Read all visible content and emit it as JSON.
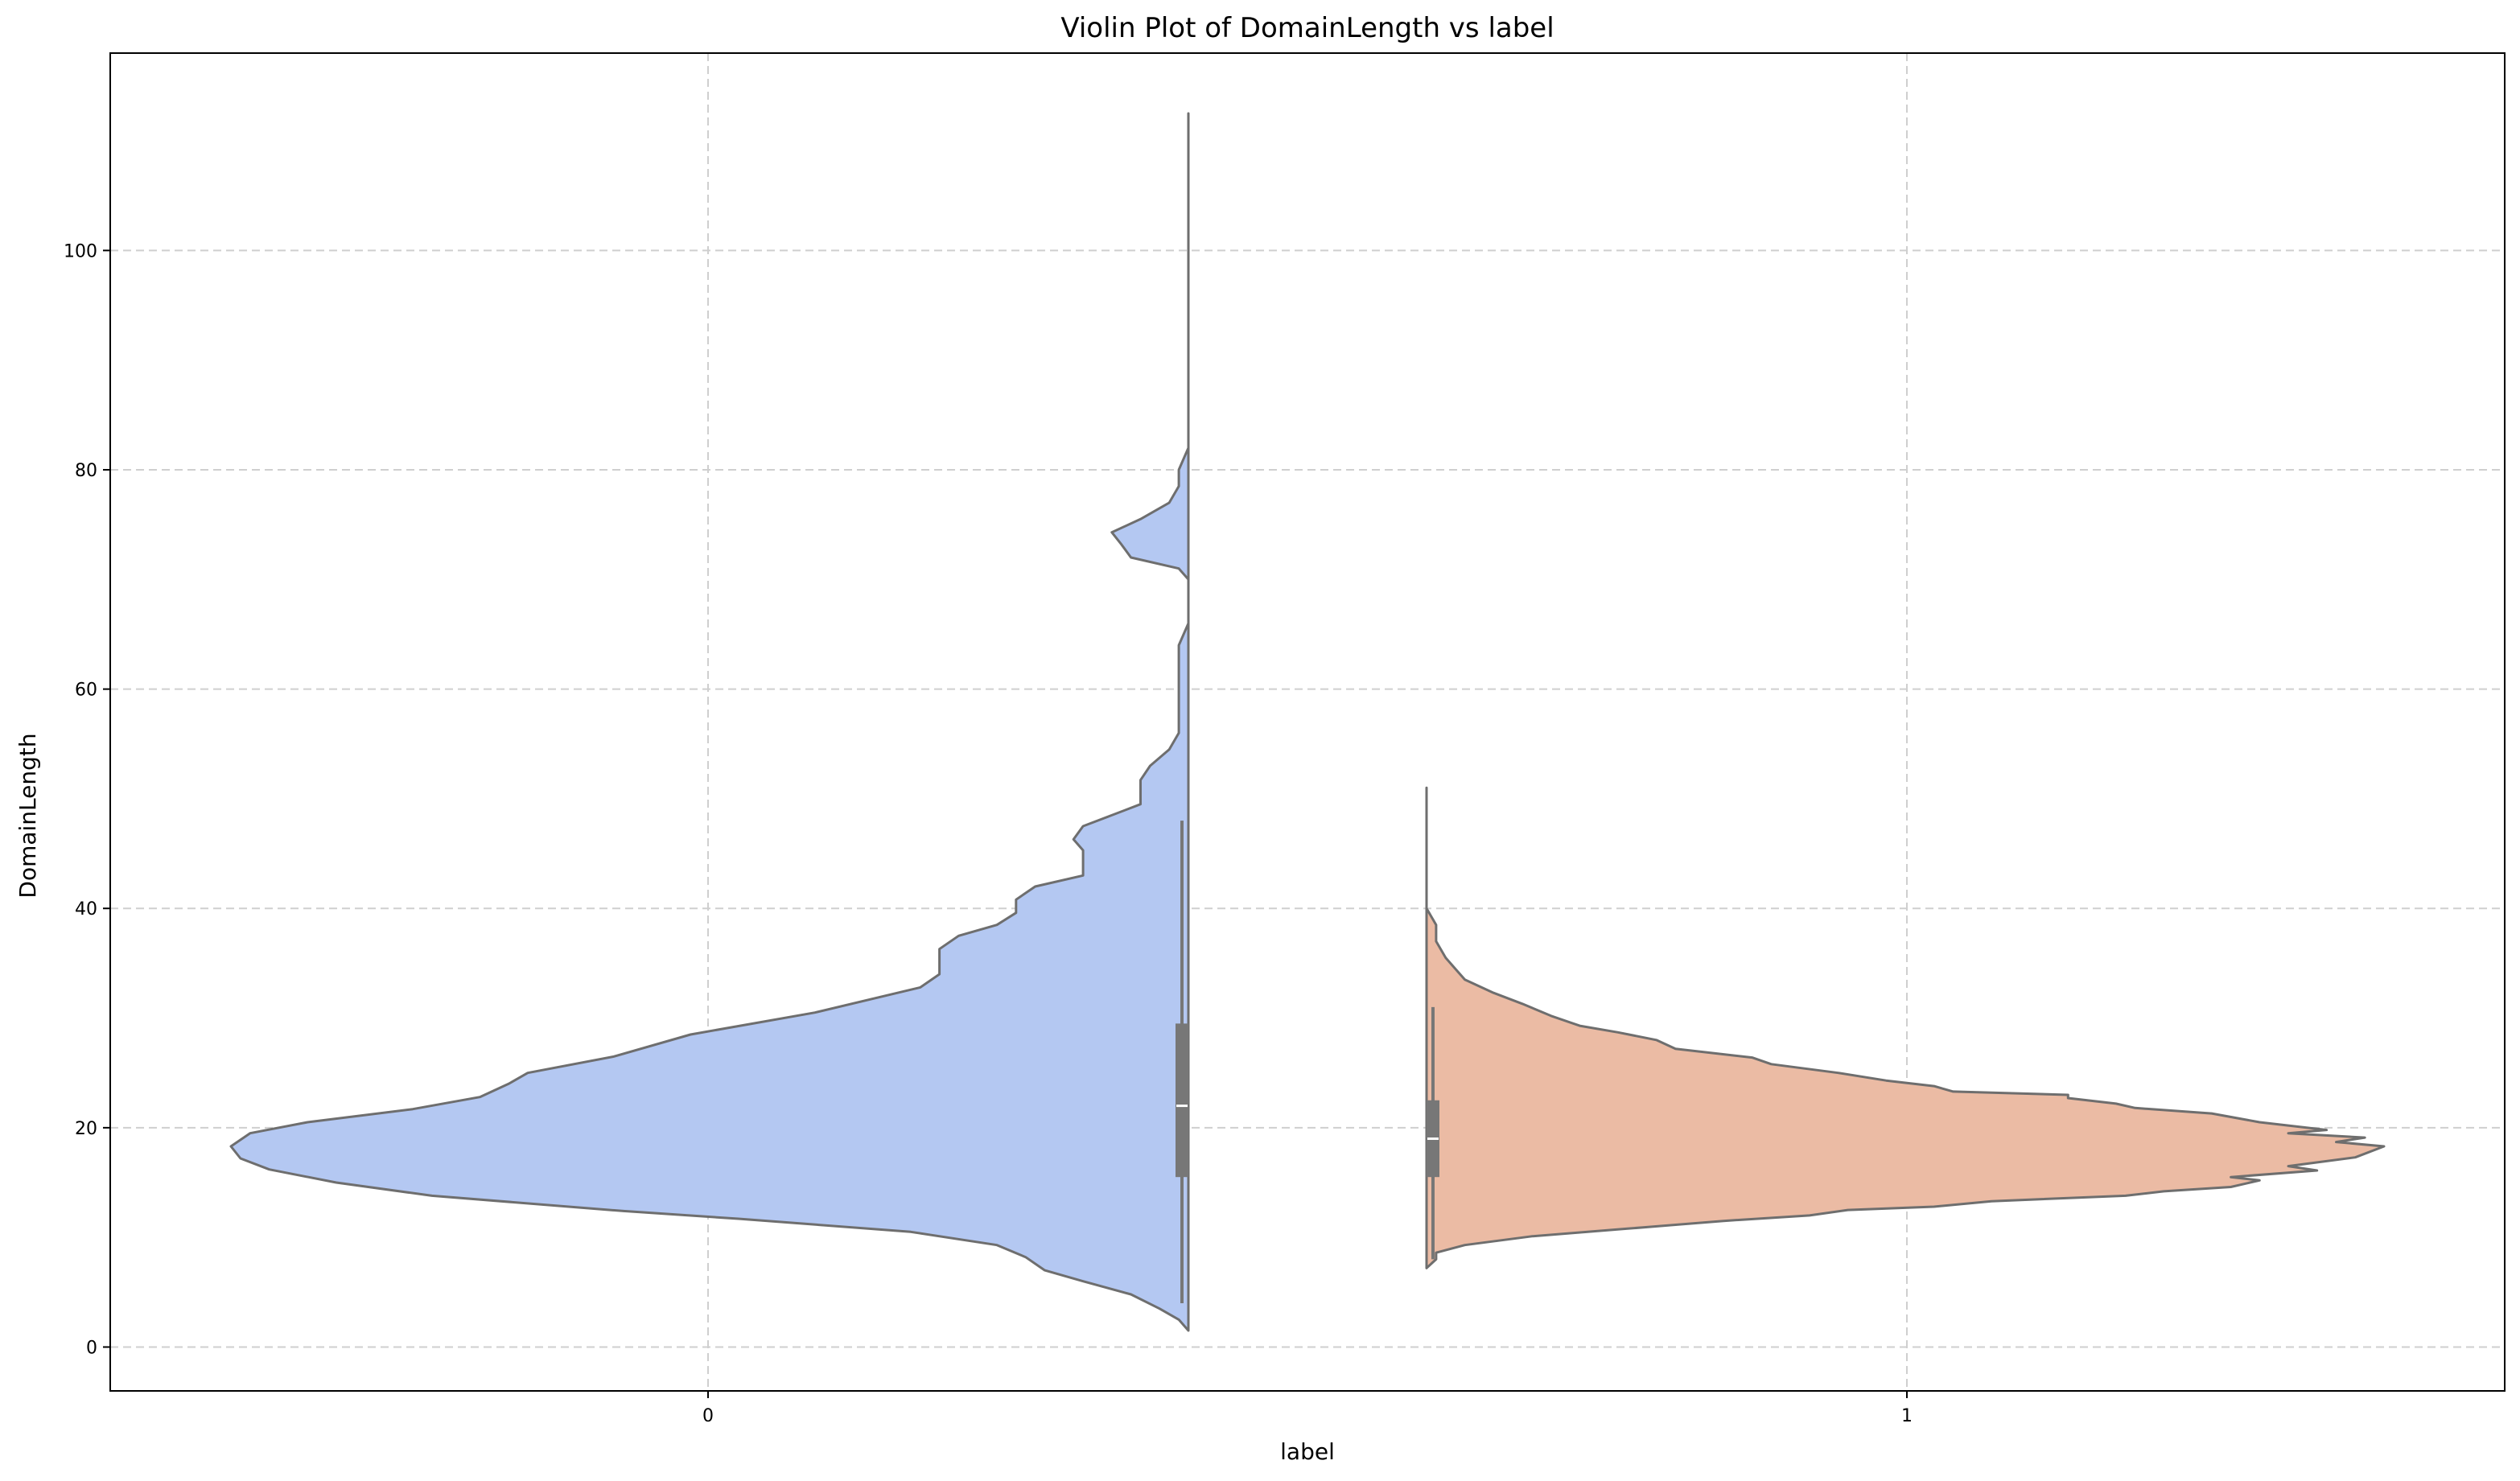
{
  "chart_data": {
    "type": "violin",
    "title": "Violin Plot of DomainLength vs label",
    "xlabel": "label",
    "ylabel": "DomainLength",
    "categories": [
      "0",
      "1"
    ],
    "ylim": [
      -4,
      118
    ],
    "yticks": [
      0,
      20,
      40,
      60,
      80,
      100
    ],
    "grid": true,
    "split": true,
    "series": [
      {
        "category": "0",
        "color": "#b4c8f2",
        "side": "left",
        "quartiles": {
          "q1": 15.5,
          "median": 22,
          "q3": 29.5,
          "whisker_low": 4,
          "whisker_high": 48
        },
        "profile": [
          [
            1.5,
            0.0
          ],
          [
            2.5,
            0.01
          ],
          [
            3.5,
            0.03
          ],
          [
            4.8,
            0.06
          ],
          [
            6.0,
            0.11
          ],
          [
            7.0,
            0.15
          ],
          [
            8.2,
            0.17
          ],
          [
            9.3,
            0.2
          ],
          [
            10.5,
            0.29
          ],
          [
            11.7,
            0.47
          ],
          [
            12.4,
            0.59
          ],
          [
            13.8,
            0.79
          ],
          [
            15.0,
            0.89
          ],
          [
            16.2,
            0.96
          ],
          [
            17.2,
            0.99
          ],
          [
            18.3,
            1.0
          ],
          [
            19.5,
            0.98
          ],
          [
            20.5,
            0.92
          ],
          [
            21.7,
            0.81
          ],
          [
            22.8,
            0.74
          ],
          [
            24.0,
            0.71
          ],
          [
            25.0,
            0.69
          ],
          [
            26.5,
            0.6
          ],
          [
            28.5,
            0.52
          ],
          [
            30.5,
            0.39
          ],
          [
            32.8,
            0.28
          ],
          [
            34.0,
            0.26
          ],
          [
            36.3,
            0.26
          ],
          [
            37.5,
            0.24
          ],
          [
            38.5,
            0.2
          ],
          [
            39.6,
            0.18
          ],
          [
            40.8,
            0.18
          ],
          [
            42.0,
            0.16
          ],
          [
            43.0,
            0.11
          ],
          [
            44.0,
            0.11
          ],
          [
            45.3,
            0.11
          ],
          [
            46.3,
            0.12
          ],
          [
            47.5,
            0.11
          ],
          [
            48.5,
            0.08
          ],
          [
            49.5,
            0.05
          ],
          [
            50.5,
            0.05
          ],
          [
            51.7,
            0.05
          ],
          [
            53.0,
            0.04
          ],
          [
            54.5,
            0.02
          ],
          [
            56.0,
            0.01
          ],
          [
            60.0,
            0.01
          ],
          [
            64.0,
            0.01
          ],
          [
            66.0,
            0.0
          ],
          [
            70.0,
            0.0
          ],
          [
            71.0,
            0.01
          ],
          [
            72.0,
            0.06
          ],
          [
            73.2,
            0.07
          ],
          [
            74.3,
            0.08
          ],
          [
            75.5,
            0.05
          ],
          [
            77.0,
            0.02
          ],
          [
            78.5,
            0.01
          ],
          [
            80.0,
            0.01
          ],
          [
            82.0,
            0.0
          ],
          [
            88.0,
            0.0
          ],
          [
            100.0,
            0.0
          ],
          [
            112.5,
            0.0
          ]
        ]
      },
      {
        "category": "1",
        "color": "#ebbba4",
        "side": "right",
        "quartiles": {
          "q1": 15.5,
          "median": 19,
          "q3": 22.5,
          "whisker_low": 8,
          "whisker_high": 31
        },
        "profile": [
          [
            7.2,
            0.0
          ],
          [
            8.0,
            0.01
          ],
          [
            8.6,
            0.01
          ],
          [
            9.3,
            0.04
          ],
          [
            10.1,
            0.11
          ],
          [
            10.8,
            0.21
          ],
          [
            11.5,
            0.31
          ],
          [
            12.0,
            0.4
          ],
          [
            12.5,
            0.44
          ],
          [
            12.8,
            0.53
          ],
          [
            13.3,
            0.59
          ],
          [
            13.8,
            0.73
          ],
          [
            14.2,
            0.77
          ],
          [
            14.6,
            0.84
          ],
          [
            15.2,
            0.87
          ],
          [
            15.5,
            0.84
          ],
          [
            16.1,
            0.93
          ],
          [
            16.5,
            0.9
          ],
          [
            17.3,
            0.97
          ],
          [
            18.3,
            1.0
          ],
          [
            18.7,
            0.95
          ],
          [
            19.1,
            0.98
          ],
          [
            19.5,
            0.9
          ],
          [
            19.8,
            0.94
          ],
          [
            20.5,
            0.87
          ],
          [
            21.3,
            0.82
          ],
          [
            21.8,
            0.74
          ],
          [
            22.2,
            0.72
          ],
          [
            22.7,
            0.67
          ],
          [
            23.0,
            0.67
          ],
          [
            23.3,
            0.55
          ],
          [
            23.8,
            0.53
          ],
          [
            24.3,
            0.48
          ],
          [
            25.0,
            0.43
          ],
          [
            25.8,
            0.36
          ],
          [
            26.4,
            0.34
          ],
          [
            27.2,
            0.26
          ],
          [
            28.0,
            0.24
          ],
          [
            28.7,
            0.2
          ],
          [
            29.3,
            0.16
          ],
          [
            30.2,
            0.13
          ],
          [
            31.3,
            0.1
          ],
          [
            32.3,
            0.07
          ],
          [
            33.5,
            0.04
          ],
          [
            34.5,
            0.03
          ],
          [
            35.5,
            0.02
          ],
          [
            37.0,
            0.01
          ],
          [
            38.5,
            0.01
          ],
          [
            40.0,
            0.0
          ],
          [
            45.0,
            0.0
          ],
          [
            51.0,
            0.0
          ]
        ]
      }
    ]
  }
}
